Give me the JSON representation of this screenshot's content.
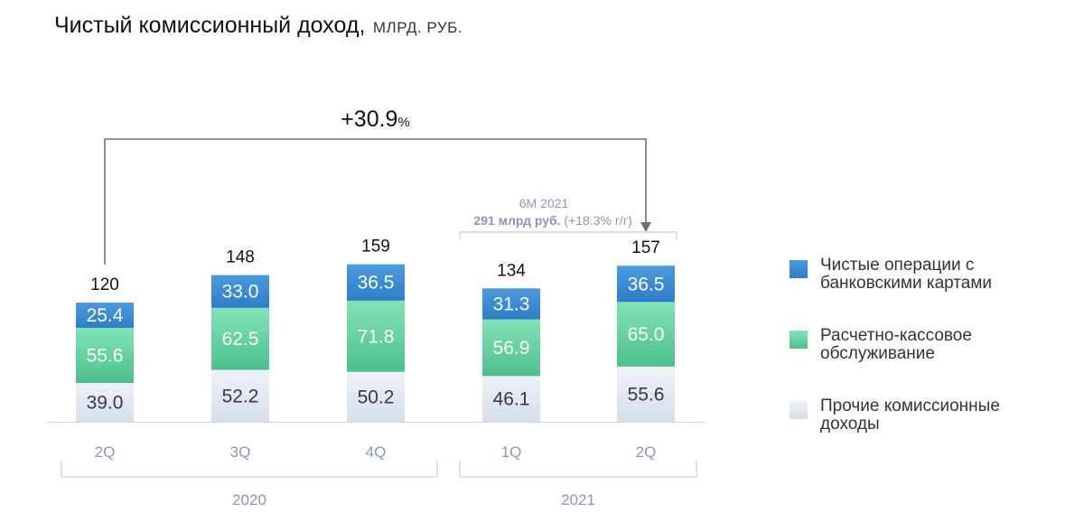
{
  "title": "Чистый комиссионный доход,",
  "title_unit": "МЛРД. РУБ.",
  "chart_data": {
    "type": "bar",
    "stacked": true,
    "categories": [
      "2Q",
      "3Q",
      "4Q",
      "1Q",
      "2Q"
    ],
    "groups": [
      {
        "label": "2020",
        "categories": [
          0,
          1,
          2
        ]
      },
      {
        "label": "2021",
        "categories": [
          3,
          4
        ]
      }
    ],
    "series": [
      {
        "name": "Прочие комиссионные доходы",
        "values": [
          39.0,
          52.2,
          50.2,
          46.1,
          55.6
        ],
        "color": "#e3e9f3"
      },
      {
        "name": "Расчетно-кассовое обслуживание",
        "values": [
          55.6,
          62.5,
          71.8,
          56.9,
          65.0
        ],
        "color": "#5fcf9f"
      },
      {
        "name": "Чистые операции с банковскими картами",
        "values": [
          25.4,
          33.0,
          36.5,
          31.3,
          36.5
        ],
        "color": "#3d8ed6"
      }
    ],
    "totals": [
      120,
      148,
      159,
      134,
      157
    ],
    "growth_annotation": {
      "value": "+30.9",
      "unit": "%",
      "from_index": 0,
      "to_index": 4
    },
    "period_annotation": {
      "line1": "6М 2021",
      "line2_bold": "291 млрд руб.",
      "line2_rest": " (+18.3% г/г)",
      "categories": [
        3,
        4
      ]
    }
  },
  "legend": {
    "items": [
      {
        "line1": "Чистые операции с",
        "line2": "банковскими картами",
        "color": "#3d8ed6"
      },
      {
        "line1": "Расчетно-кассовое",
        "line2": "обслуживание",
        "color": "#5fcf9f"
      },
      {
        "line1": "Прочие комиссионные",
        "line2": "доходы",
        "color": "#e3e9f3"
      }
    ]
  }
}
